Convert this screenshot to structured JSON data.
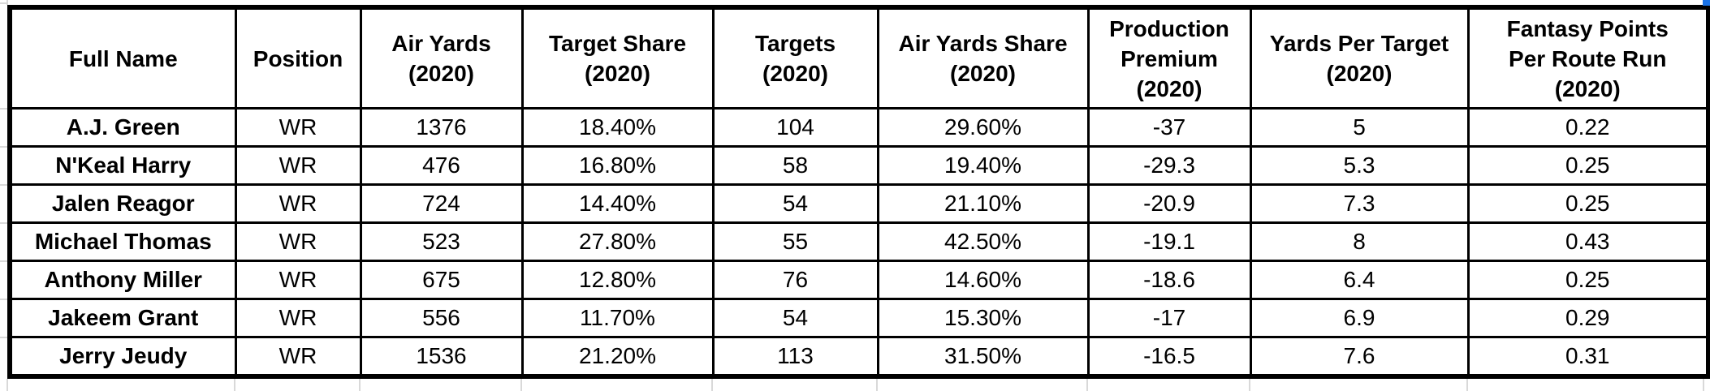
{
  "table": {
    "columns": [
      {
        "label": "Full Name"
      },
      {
        "label": "Position"
      },
      {
        "label": "Air Yards\n(2020)"
      },
      {
        "label": "Target Share\n(2020)"
      },
      {
        "label": "Targets\n(2020)"
      },
      {
        "label": "Air Yards Share\n(2020)"
      },
      {
        "label": "Production\nPremium\n(2020)"
      },
      {
        "label": "Yards Per Target\n(2020)"
      },
      {
        "label": "Fantasy Points\nPer Route Run\n(2020)"
      }
    ],
    "rows": [
      [
        "A.J. Green",
        "WR",
        "1376",
        "18.40%",
        "104",
        "29.60%",
        "-37",
        "5",
        "0.22"
      ],
      [
        "N'Keal Harry",
        "WR",
        "476",
        "16.80%",
        "58",
        "19.40%",
        "-29.3",
        "5.3",
        "0.25"
      ],
      [
        "Jalen Reagor",
        "WR",
        "724",
        "14.40%",
        "54",
        "21.10%",
        "-20.9",
        "7.3",
        "0.25"
      ],
      [
        "Michael Thomas",
        "WR",
        "523",
        "27.80%",
        "55",
        "42.50%",
        "-19.1",
        "8",
        "0.43"
      ],
      [
        "Anthony Miller",
        "WR",
        "675",
        "12.80%",
        "76",
        "14.60%",
        "-18.6",
        "6.4",
        "0.25"
      ],
      [
        "Jakeem Grant",
        "WR",
        "556",
        "11.70%",
        "54",
        "15.30%",
        "-17",
        "6.9",
        "0.29"
      ],
      [
        "Jerry Jeudy",
        "WR",
        "1536",
        "21.20%",
        "113",
        "31.50%",
        "-16.5",
        "7.6",
        "0.31"
      ]
    ]
  },
  "colors": {
    "table_border": "#000000",
    "selection_handle": "#1a73e8",
    "gridline": "#d9d9d9"
  }
}
